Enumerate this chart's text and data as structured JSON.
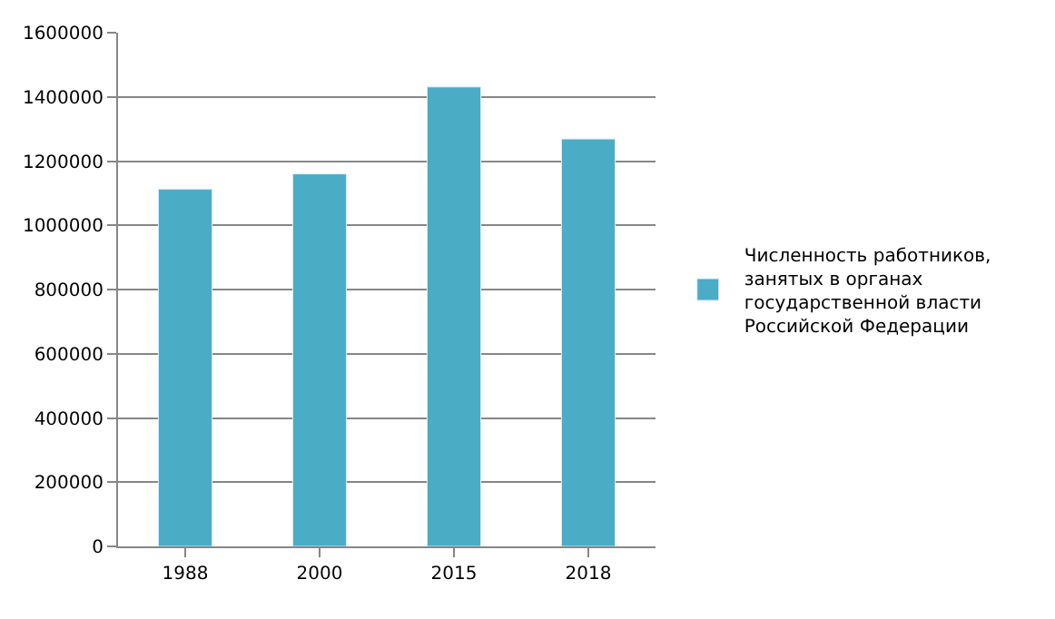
{
  "chart_data": {
    "type": "bar",
    "categories": [
      "1988",
      "2000",
      "2015",
      "2018"
    ],
    "series": [
      {
        "name": "Численность работников, занятых в органах государственной власти Российской Федерации",
        "color": "#4bacc6",
        "values": [
          1113000,
          1160000,
          1431000,
          1269000
        ]
      }
    ],
    "ylim": [
      0,
      1600000
    ],
    "yticks": [
      0,
      200000,
      400000,
      600000,
      800000,
      1000000,
      1200000,
      1400000,
      1600000
    ],
    "grid": "y",
    "legend": "right"
  }
}
